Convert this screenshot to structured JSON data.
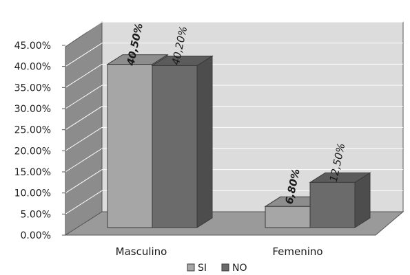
{
  "chart_data": {
    "type": "bar",
    "style": "3d-clustered",
    "categories": [
      "Masculino",
      "Femenino"
    ],
    "series": [
      {
        "name": "SI",
        "values": [
          40.5,
          6.8
        ],
        "data_labels": [
          "40,50%",
          "6,80%"
        ],
        "label_bold": true,
        "color": "#a6a6a6"
      },
      {
        "name": "NO",
        "values": [
          40.2,
          12.5
        ],
        "data_labels": [
          "40,20%",
          "12,50%"
        ],
        "label_bold": false,
        "color": "#6b6b6b"
      }
    ],
    "yticks": [
      "0.00%",
      "5.00%",
      "10.00%",
      "15.00%",
      "20.00%",
      "25.00%",
      "30.00%",
      "35.00%",
      "40.00%",
      "45.00%"
    ],
    "ylim": [
      0,
      45
    ],
    "grid": true,
    "legend_position": "bottom",
    "colors": {
      "wall": "#dcdcdc",
      "floor": "#9a9a9a",
      "side_wall": "#8c8c8c",
      "grid": "#ffffff"
    }
  }
}
